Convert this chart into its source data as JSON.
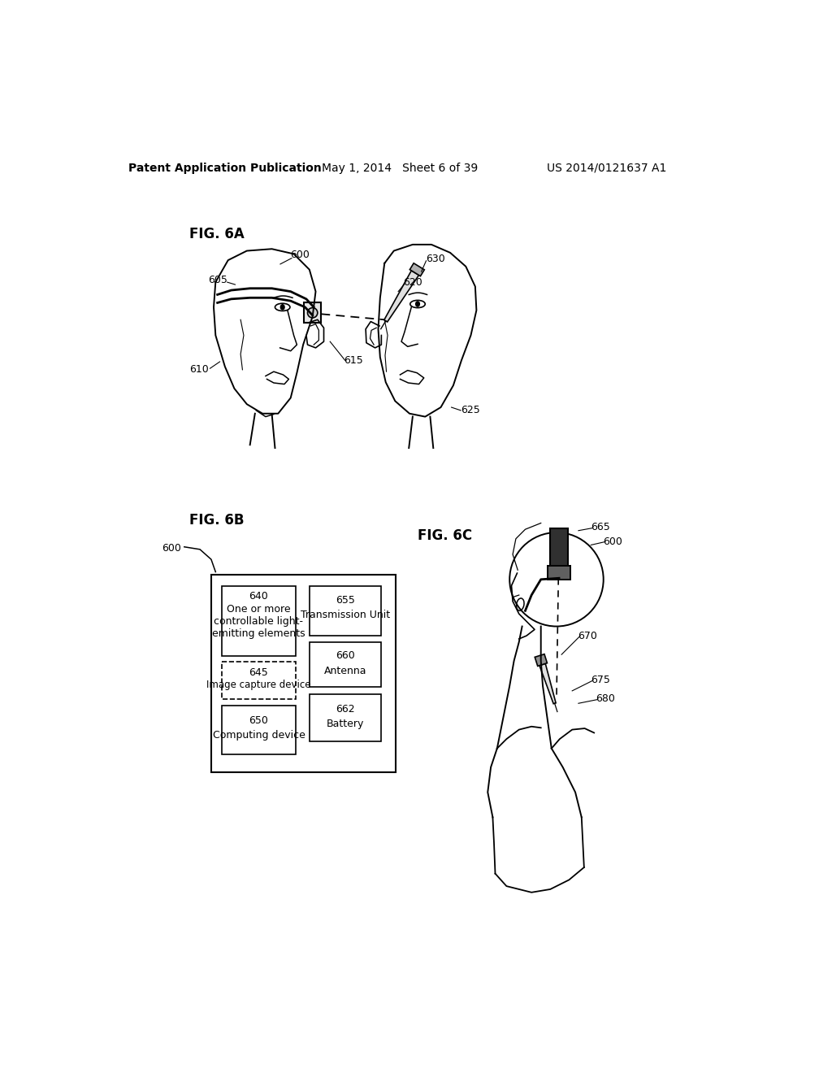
{
  "background_color": "#ffffff",
  "header_left": "Patent Application Publication",
  "header_center": "May 1, 2014   Sheet 6 of 39",
  "header_right": "US 2014/0121637 A1",
  "fig6a_label": "FIG. 6A",
  "fig6b_label": "FIG. 6B",
  "fig6c_label": "FIG. 6C"
}
